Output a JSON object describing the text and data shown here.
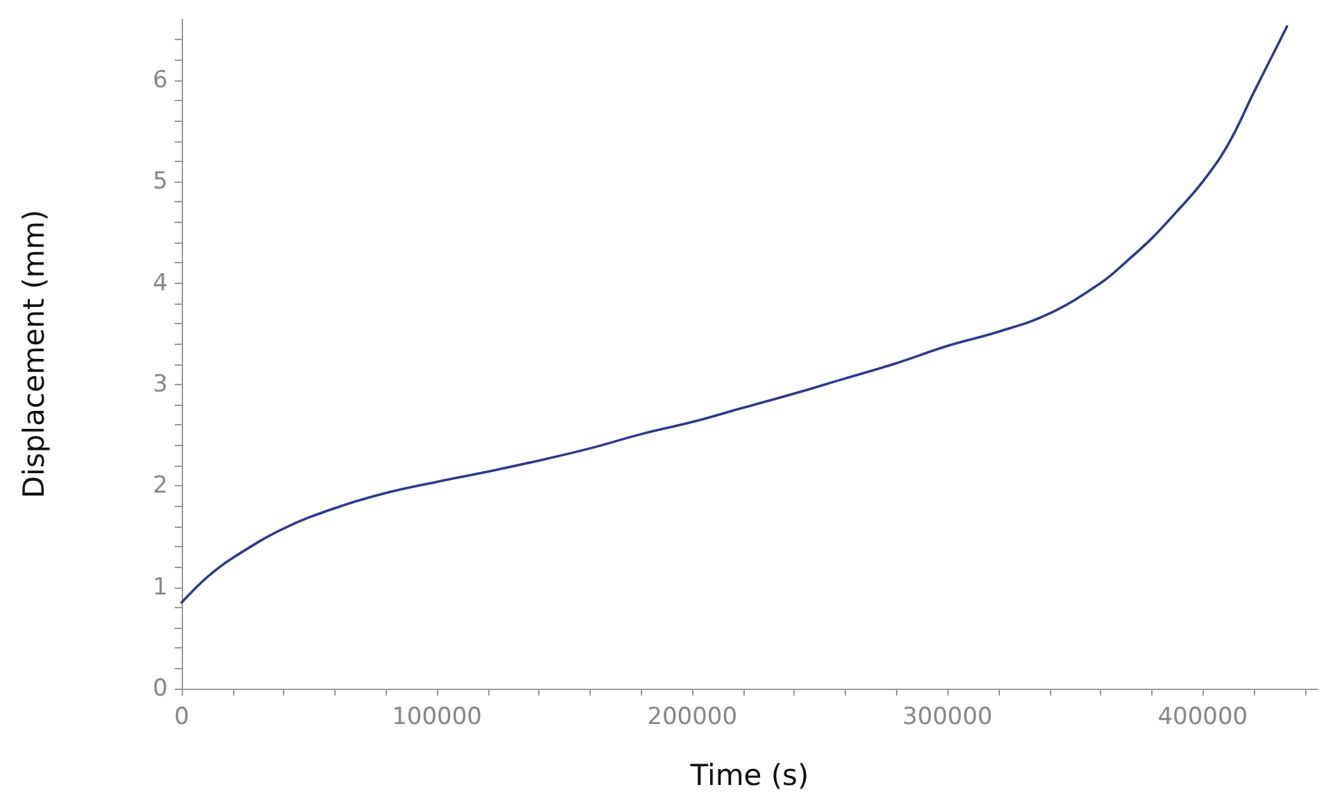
{
  "chart_data": {
    "type": "line",
    "xlabel": "Time (s)",
    "ylabel": "Displacement (mm)",
    "x": [
      0,
      10000,
      20000,
      40000,
      60000,
      80000,
      100000,
      120000,
      140000,
      160000,
      180000,
      200000,
      220000,
      240000,
      260000,
      280000,
      300000,
      320000,
      340000,
      360000,
      370000,
      380000,
      390000,
      400000,
      410000,
      420000,
      430000,
      433000
    ],
    "series": [
      {
        "color": "#2e3a87",
        "values": [
          0.85,
          1.1,
          1.29,
          1.58,
          1.78,
          1.93,
          2.04,
          2.14,
          2.25,
          2.37,
          2.51,
          2.63,
          2.77,
          2.91,
          3.06,
          3.21,
          3.38,
          3.52,
          3.7,
          4.0,
          4.21,
          4.44,
          4.71,
          5.0,
          5.37,
          5.88,
          6.38,
          6.53
        ]
      }
    ],
    "xlim": [
      0,
      445000
    ],
    "ylim": [
      0,
      6.6
    ],
    "xticks": [
      0,
      {
        "value": 20000,
        "label": null
      },
      {
        "value": 40000,
        "label": null
      },
      {
        "value": 60000,
        "label": null
      },
      {
        "value": 80000,
        "label": null
      },
      100000,
      {
        "value": 120000,
        "label": null
      },
      {
        "value": 140000,
        "label": null
      },
      {
        "value": 160000,
        "label": null
      },
      {
        "value": 180000,
        "label": null
      },
      200000,
      {
        "value": 220000,
        "label": null
      },
      {
        "value": 240000,
        "label": null
      },
      {
        "value": 260000,
        "label": null
      },
      {
        "value": 280000,
        "label": null
      },
      300000,
      {
        "value": 320000,
        "label": null
      },
      {
        "value": 340000,
        "label": null
      },
      {
        "value": 360000,
        "label": null
      },
      {
        "value": 380000,
        "label": null
      },
      400000,
      {
        "value": 420000,
        "label": null
      },
      {
        "value": 440000,
        "label": null
      }
    ],
    "yticks": [
      0,
      {
        "value": 0.2,
        "label": null
      },
      {
        "value": 0.4,
        "label": null
      },
      {
        "value": 0.6,
        "label": null
      },
      {
        "value": 0.8,
        "label": null
      },
      1,
      {
        "value": 1.2,
        "label": null
      },
      {
        "value": 1.4,
        "label": null
      },
      {
        "value": 1.6,
        "label": null
      },
      {
        "value": 1.8,
        "label": null
      },
      2,
      {
        "value": 2.2,
        "label": null
      },
      {
        "value": 2.4,
        "label": null
      },
      {
        "value": 2.6,
        "label": null
      },
      {
        "value": 2.8,
        "label": null
      },
      3,
      {
        "value": 3.2,
        "label": null
      },
      {
        "value": 3.4,
        "label": null
      },
      {
        "value": 3.6,
        "label": null
      },
      {
        "value": 3.8,
        "label": null
      },
      4,
      {
        "value": 4.2,
        "label": null
      },
      {
        "value": 4.4,
        "label": null
      },
      {
        "value": 4.6,
        "label": null
      },
      {
        "value": 4.8,
        "label": null
      },
      5,
      {
        "value": 5.2,
        "label": null
      },
      {
        "value": 5.4,
        "label": null
      },
      {
        "value": 5.6,
        "label": null
      },
      {
        "value": 5.8,
        "label": null
      },
      6,
      {
        "value": 6.2,
        "label": null
      },
      {
        "value": 6.4,
        "label": null
      }
    ],
    "marker": "none",
    "line_style": "solid"
  }
}
